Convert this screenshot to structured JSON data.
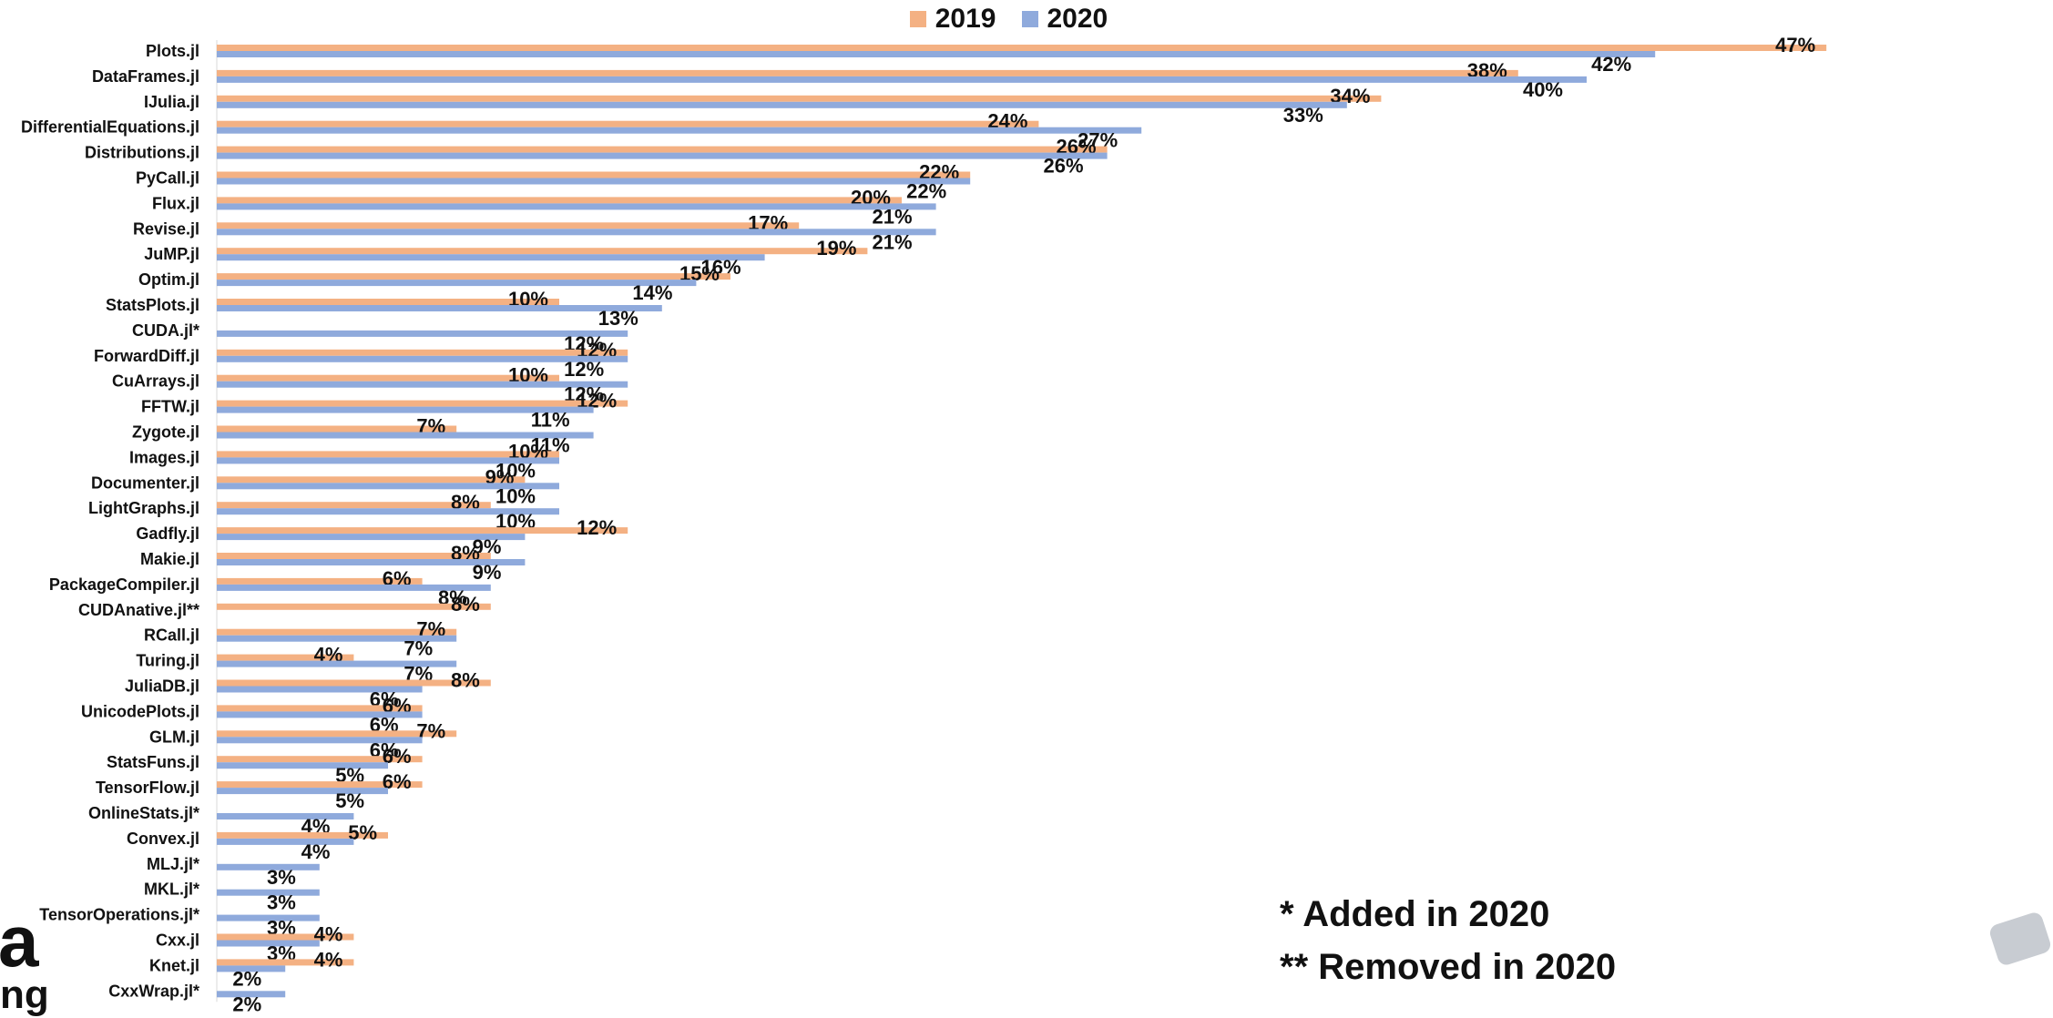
{
  "legend": {
    "label_2019": "2019",
    "label_2020": "2020"
  },
  "notes": {
    "added": "* Added in 2020",
    "removed": "** Removed in 2020"
  },
  "logo_text": {
    "top": "a",
    "bottom": "ng"
  },
  "colors": {
    "series_2019": "#f4b183",
    "series_2020": "#8faadc",
    "text": "#111111"
  },
  "chart_data": {
    "type": "bar",
    "orientation": "horizontal",
    "categories": [
      "Plots.jl",
      "DataFrames.jl",
      "IJulia.jl",
      "DifferentialEquations.jl",
      "Distributions.jl",
      "PyCall.jl",
      "Flux.jl",
      "Revise.jl",
      "JuMP.jl",
      "Optim.jl",
      "StatsPlots.jl",
      "CUDA.jl*",
      "ForwardDiff.jl",
      "CuArrays.jl",
      "FFTW.jl",
      "Zygote.jl",
      "Images.jl",
      "Documenter.jl",
      "LightGraphs.jl",
      "Gadfly.jl",
      "Makie.jl",
      "PackageCompiler.jl",
      "CUDAnative.jl**",
      "RCall.jl",
      "Turing.jl",
      "JuliaDB.jl",
      "UnicodePlots.jl",
      "GLM.jl",
      "StatsFuns.jl",
      "TensorFlow.jl",
      "OnlineStats.jl*",
      "Convex.jl",
      "MLJ.jl*",
      "MKL.jl*",
      "TensorOperations.jl*",
      "Cxx.jl",
      "Knet.jl",
      "CxxWrap.jl*"
    ],
    "series": [
      {
        "name": "2019",
        "values": [
          47,
          38,
          34,
          24,
          26,
          22,
          20,
          17,
          19,
          15,
          10,
          null,
          12,
          10,
          12,
          7,
          10,
          9,
          8,
          12,
          8,
          6,
          8,
          7,
          4,
          8,
          6,
          7,
          6,
          6,
          null,
          5,
          null,
          null,
          null,
          4,
          4,
          null
        ]
      },
      {
        "name": "2020",
        "values": [
          42,
          40,
          33,
          27,
          26,
          22,
          21,
          21,
          16,
          14,
          13,
          12,
          12,
          12,
          11,
          11,
          10,
          10,
          10,
          9,
          9,
          8,
          null,
          7,
          7,
          6,
          6,
          6,
          5,
          5,
          4,
          4,
          3,
          3,
          3,
          3,
          2,
          2
        ]
      }
    ],
    "value_suffix": "%",
    "xlim": [
      0,
      47
    ],
    "grid": false,
    "legend_position": "top-center"
  }
}
